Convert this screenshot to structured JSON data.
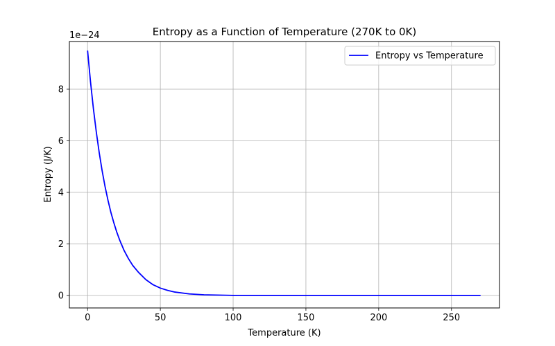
{
  "chart_data": {
    "type": "line",
    "title": "Entropy as a Function of Temperature (270K to 0K)",
    "xlabel": "Temperature (K)",
    "ylabel": "Entropy (J/K)",
    "y_offset_label": "1e−24",
    "xlim": [
      -12.5,
      283
    ],
    "ylim": [
      -0.48,
      9.85
    ],
    "x_ticks": [
      0,
      50,
      100,
      150,
      200,
      250
    ],
    "y_ticks": [
      0,
      2,
      4,
      6,
      8
    ],
    "x_tick_labels": [
      "0",
      "50",
      "100",
      "150",
      "200",
      "250"
    ],
    "y_tick_labels": [
      "0",
      "2",
      "4",
      "6",
      "8"
    ],
    "grid": true,
    "legend": "top-right",
    "series": [
      {
        "name": "Entropy vs Temperature",
        "color": "#0000ff",
        "x": [
          0,
          2,
          4,
          6,
          8,
          10,
          12,
          14,
          16,
          18,
          20,
          22,
          25,
          28,
          31,
          35,
          40,
          45,
          50,
          55,
          60,
          70,
          80,
          100,
          150,
          200,
          250,
          270
        ],
        "y": [
          9.5,
          8.3,
          7.25,
          6.34,
          5.54,
          4.84,
          4.23,
          3.7,
          3.23,
          2.83,
          2.47,
          2.16,
          1.76,
          1.44,
          1.17,
          0.9,
          0.62,
          0.42,
          0.29,
          0.2,
          0.135,
          0.063,
          0.03,
          0.006,
          0.0001,
          0,
          0,
          0
        ]
      }
    ]
  }
}
